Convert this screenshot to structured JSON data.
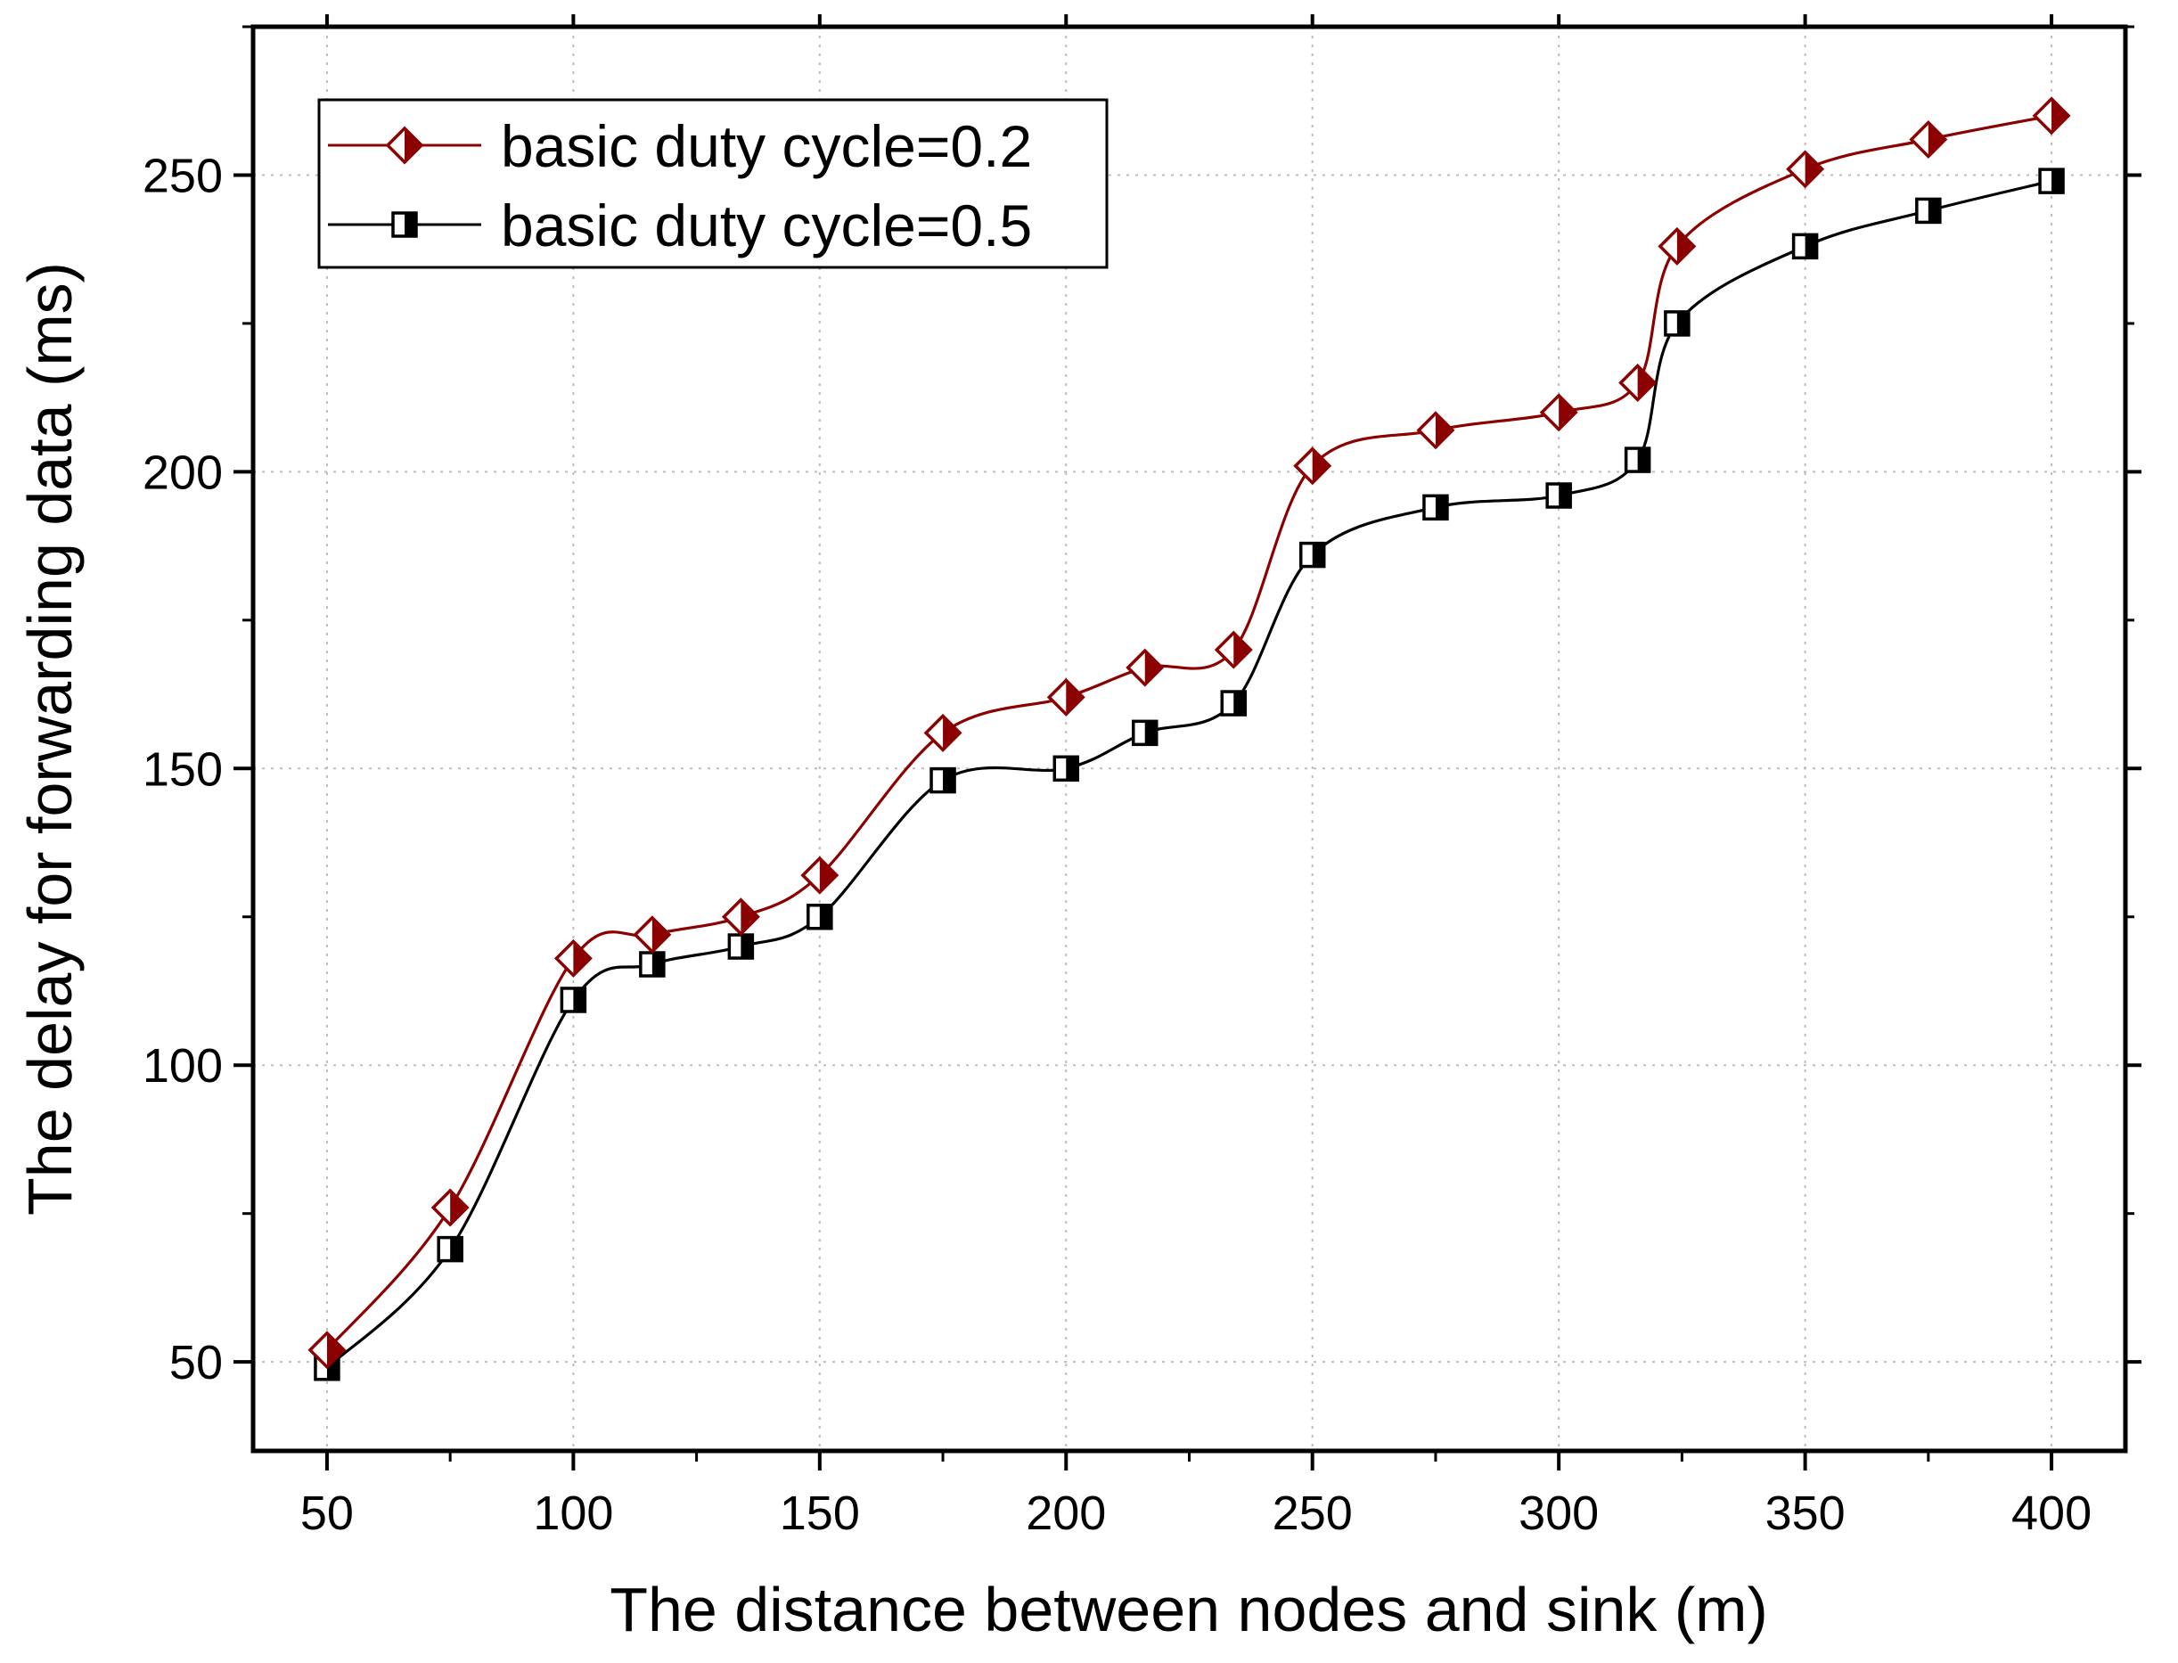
{
  "chart_data": {
    "type": "line",
    "title": "",
    "xlabel": "The distance between nodes and sink (m)",
    "ylabel": "The delay for forwarding data (ms)",
    "xlim": [
      35,
      415
    ],
    "ylim": [
      35,
      275
    ],
    "xticks": [
      50,
      100,
      150,
      200,
      250,
      300,
      350,
      400
    ],
    "yticks": [
      50,
      100,
      150,
      200,
      250
    ],
    "grid": true,
    "legend_position": "top-left",
    "series": [
      {
        "name": "basic duty cycle=0.2",
        "color": "#8B0000",
        "marker": "half-filled-diamond",
        "x": [
          50,
          75,
          100,
          116,
          134,
          150,
          175,
          200,
          216,
          234,
          250,
          275,
          300,
          316,
          324,
          350,
          375,
          400
        ],
        "y": [
          52,
          76,
          118,
          122,
          125,
          132,
          156,
          162,
          167,
          170,
          201,
          207,
          210,
          215,
          238,
          251,
          256,
          260
        ]
      },
      {
        "name": "basic duty cycle=0.5",
        "color": "#000000",
        "marker": "half-filled-square",
        "x": [
          50,
          75,
          100,
          116,
          134,
          150,
          175,
          200,
          216,
          234,
          250,
          275,
          300,
          316,
          324,
          350,
          375,
          400
        ],
        "y": [
          49,
          69,
          111,
          117,
          120,
          125,
          148,
          150,
          156,
          161,
          186,
          194,
          196,
          202,
          225,
          238,
          244,
          249
        ]
      }
    ]
  }
}
